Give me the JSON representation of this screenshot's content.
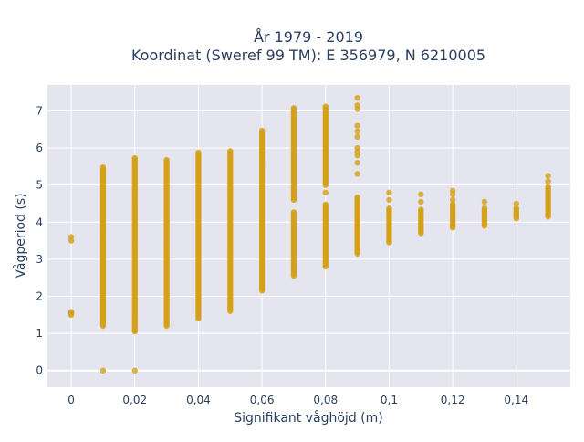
{
  "chart_data": {
    "type": "scatter",
    "title_line1": "År 1979 - 2019",
    "title_line2": "Koordinat (Sweref 99 TM): E 356979, N 6210005",
    "xlabel": "Signifikant våghöjd (m)",
    "ylabel": "Vågperiod (s)",
    "xlim": [
      -0.0075,
      0.157
    ],
    "ylim": [
      -0.45,
      7.7
    ],
    "x_ticks": [
      0,
      0.02,
      0.04,
      0.06,
      0.08,
      0.1,
      0.12,
      0.14
    ],
    "x_tick_labels": [
      "0",
      "0,02",
      "0,04",
      "0,06",
      "0,08",
      "0,1",
      "0,12",
      "0,14"
    ],
    "y_ticks": [
      0,
      1,
      2,
      3,
      4,
      5,
      6,
      7
    ],
    "y_tick_labels": [
      "0",
      "1",
      "2",
      "3",
      "4",
      "5",
      "6",
      "7"
    ],
    "grid": true,
    "legend": "none",
    "colors": {
      "marker": "#d4a017",
      "plot_background": "#e5e5f0",
      "grid": "#ffffff",
      "text": "#2a3f5f"
    },
    "columns": [
      {
        "x": 0,
        "ranges": [
          [
            1.5,
            1.6
          ]
        ],
        "points": [
          3.5,
          3.6
        ]
      },
      {
        "x": 0.01,
        "ranges": [
          [
            1.2,
            5.5
          ]
        ],
        "points": [
          0.0
        ]
      },
      {
        "x": 0.02,
        "ranges": [
          [
            1.05,
            5.75
          ]
        ],
        "points": [
          0.0
        ]
      },
      {
        "x": 0.03,
        "ranges": [
          [
            1.2,
            5.7
          ]
        ],
        "points": []
      },
      {
        "x": 0.04,
        "ranges": [
          [
            1.4,
            5.9
          ]
        ],
        "points": []
      },
      {
        "x": 0.05,
        "ranges": [
          [
            1.6,
            5.95
          ]
        ],
        "points": []
      },
      {
        "x": 0.06,
        "ranges": [
          [
            2.15,
            6.5
          ]
        ],
        "points": []
      },
      {
        "x": 0.07,
        "ranges": [
          [
            2.55,
            4.3
          ],
          [
            4.6,
            7.1
          ]
        ],
        "points": []
      },
      {
        "x": 0.08,
        "ranges": [
          [
            2.8,
            4.5
          ],
          [
            5.0,
            7.15
          ]
        ],
        "points": [
          4.8
        ]
      },
      {
        "x": 0.09,
        "ranges": [
          [
            3.15,
            4.7
          ]
        ],
        "points": [
          5.3,
          5.6,
          5.8,
          5.9,
          6.0,
          6.3,
          6.45,
          6.6,
          7.05,
          7.15,
          7.35
        ]
      },
      {
        "x": 0.1,
        "ranges": [
          [
            3.45,
            4.4
          ]
        ],
        "points": [
          4.6,
          4.8
        ]
      },
      {
        "x": 0.11,
        "ranges": [
          [
            3.7,
            4.35
          ]
        ],
        "points": [
          4.55,
          4.75
        ]
      },
      {
        "x": 0.12,
        "ranges": [
          [
            3.85,
            4.5
          ]
        ],
        "points": [
          4.6,
          4.75,
          4.85
        ]
      },
      {
        "x": 0.13,
        "ranges": [
          [
            3.9,
            4.4
          ]
        ],
        "points": [
          4.55
        ]
      },
      {
        "x": 0.14,
        "ranges": [
          [
            4.1,
            4.4
          ]
        ],
        "points": [
          4.5
        ]
      },
      {
        "x": 0.15,
        "ranges": [
          [
            4.15,
            4.95
          ]
        ],
        "points": [
          5.1,
          5.25
        ]
      }
    ]
  }
}
